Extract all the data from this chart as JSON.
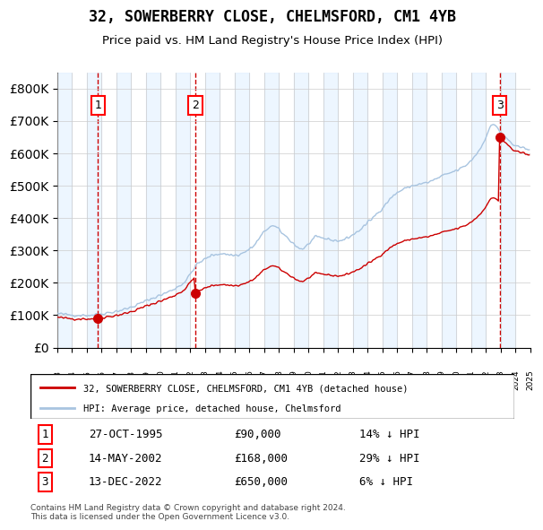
{
  "title": "32, SOWERBERRY CLOSE, CHELMSFORD, CM1 4YB",
  "subtitle": "Price paid vs. HM Land Registry's House Price Index (HPI)",
  "legend_line1": "32, SOWERBERRY CLOSE, CHELMSFORD, CM1 4YB (detached house)",
  "legend_line2": "HPI: Average price, detached house, Chelmsford",
  "sale1_date": "27-OCT-1995",
  "sale1_price": 90000,
  "sale1_pct": "14%",
  "sale2_date": "14-MAY-2002",
  "sale2_price": 168000,
  "sale2_pct": "29%",
  "sale3_date": "13-DEC-2022",
  "sale3_price": 650000,
  "sale3_pct": "6%",
  "hpi_color": "#a8c4e0",
  "property_color": "#cc0000",
  "vline_color": "#cc0000",
  "dot_color": "#cc0000",
  "bg_stripe_color": "#ddeeff",
  "grid_color": "#cccccc",
  "ylim_max": 850000,
  "footer_text": "Contains HM Land Registry data © Crown copyright and database right 2024.\nThis data is licensed under the Open Government Licence v3.0."
}
